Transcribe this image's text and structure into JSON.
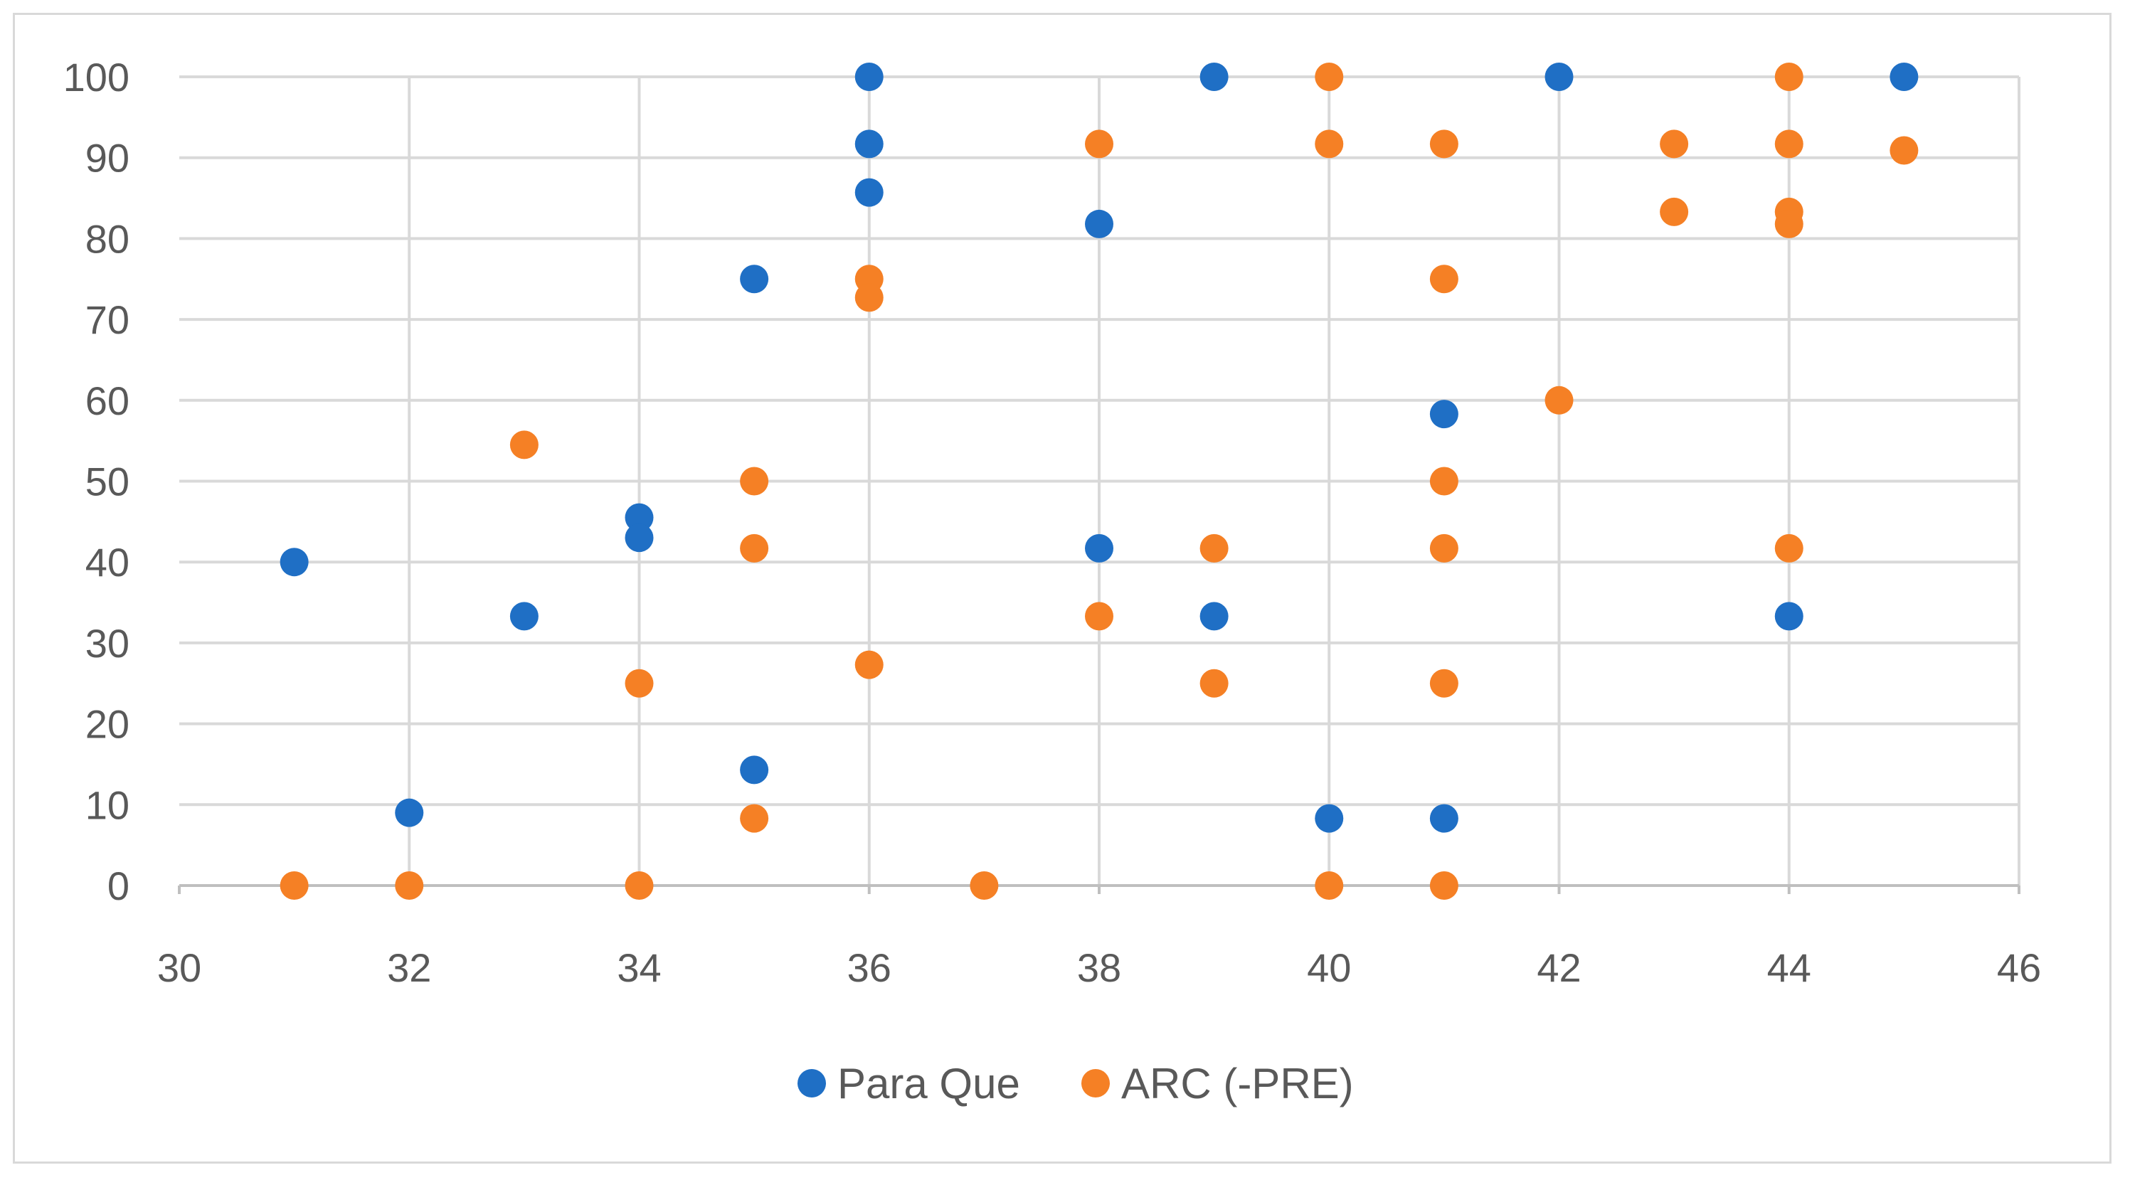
{
  "chart_data": {
    "type": "scatter",
    "title": "",
    "xlabel": "",
    "ylabel": "",
    "xlim": [
      30,
      46
    ],
    "ylim": [
      0,
      100
    ],
    "x_ticks": [
      "30",
      "32",
      "34",
      "36",
      "38",
      "40",
      "42",
      "44",
      "46"
    ],
    "y_ticks": [
      "0",
      "10",
      "20",
      "30",
      "40",
      "50",
      "60",
      "70",
      "80",
      "90",
      "100"
    ],
    "grid": true,
    "legend_position": "bottom",
    "series": [
      {
        "name": "Para Que",
        "color": "#1f6fc5",
        "points": [
          [
            31,
            40
          ],
          [
            32,
            9
          ],
          [
            33,
            33.3
          ],
          [
            34,
            45.5
          ],
          [
            34,
            43
          ],
          [
            35,
            75
          ],
          [
            35,
            14.3
          ],
          [
            36,
            100
          ],
          [
            36,
            91.7
          ],
          [
            36,
            85.7
          ],
          [
            38,
            81.8
          ],
          [
            38,
            41.7
          ],
          [
            39,
            100
          ],
          [
            39,
            33.3
          ],
          [
            40,
            8.3
          ],
          [
            41,
            58.3
          ],
          [
            41,
            8.3
          ],
          [
            42,
            100
          ],
          [
            44,
            33.3
          ],
          [
            45,
            100
          ]
        ]
      },
      {
        "name": "ARC (-PRE)",
        "color": "#f58025",
        "points": [
          [
            31,
            0
          ],
          [
            32,
            0
          ],
          [
            33,
            54.5
          ],
          [
            34,
            25
          ],
          [
            34,
            0
          ],
          [
            35,
            50
          ],
          [
            35,
            41.7
          ],
          [
            35,
            8.3
          ],
          [
            36,
            75
          ],
          [
            36,
            72.7
          ],
          [
            36,
            27.3
          ],
          [
            37,
            0
          ],
          [
            38,
            91.7
          ],
          [
            38,
            33.3
          ],
          [
            39,
            41.7
          ],
          [
            39,
            25
          ],
          [
            40,
            100
          ],
          [
            40,
            91.7
          ],
          [
            40,
            0
          ],
          [
            41,
            91.7
          ],
          [
            41,
            75
          ],
          [
            41,
            50
          ],
          [
            41,
            41.7
          ],
          [
            41,
            25
          ],
          [
            41,
            0
          ],
          [
            42,
            60
          ],
          [
            43,
            91.7
          ],
          [
            43,
            83.3
          ],
          [
            44,
            100
          ],
          [
            44,
            91.7
          ],
          [
            44,
            83.3
          ],
          [
            44,
            81.8
          ],
          [
            44,
            41.7
          ],
          [
            45,
            90.9
          ]
        ]
      }
    ]
  }
}
